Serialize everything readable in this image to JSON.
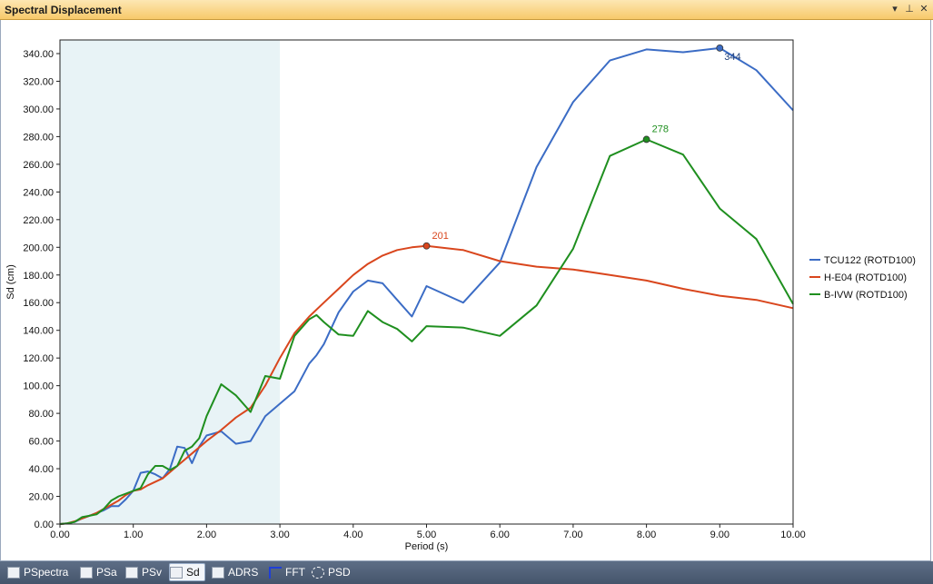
{
  "window": {
    "title": "Spectral Displacement",
    "controls": {
      "dropdown": "▾",
      "pin": "⊥",
      "close": "✕"
    }
  },
  "tabs": [
    {
      "label": "PSpectra",
      "icon": "pspectra-icon",
      "active": false
    },
    {
      "label": "PSa",
      "icon": "psa-icon",
      "active": false
    },
    {
      "label": "PSv",
      "icon": "psv-icon",
      "active": false
    },
    {
      "label": "Sd",
      "icon": "sd-icon",
      "active": true
    },
    {
      "label": "ADRS",
      "icon": "adrs-icon",
      "active": false
    },
    {
      "label": "FFT",
      "icon": "fft-icon",
      "active": false
    },
    {
      "label": "PSD",
      "icon": "psd-icon",
      "active": false
    }
  ],
  "chart_data": {
    "type": "line",
    "xlabel": "Period (s)",
    "ylabel": "Sd (cm)",
    "xlim": [
      0,
      10
    ],
    "ylim": [
      0,
      340
    ],
    "xticks": [
      "0.00",
      "1.00",
      "2.00",
      "3.00",
      "4.00",
      "5.00",
      "6.00",
      "7.00",
      "8.00",
      "9.00",
      "10.00"
    ],
    "yticks": [
      "0.00",
      "20.00",
      "40.00",
      "60.00",
      "80.00",
      "100.00",
      "120.00",
      "140.00",
      "160.00",
      "180.00",
      "200.00",
      "220.00",
      "240.00",
      "260.00",
      "280.00",
      "300.00",
      "320.00",
      "340.00"
    ],
    "shaded_region": {
      "x": [
        0,
        3
      ],
      "color": "#e8f3f6"
    },
    "grid": false,
    "legend_position": "right",
    "series": [
      {
        "name": "TCU122 (ROTD100)",
        "color": "#3b6cc5",
        "x": [
          0,
          0.1,
          0.2,
          0.3,
          0.4,
          0.5,
          0.6,
          0.7,
          0.8,
          0.9,
          1.0,
          1.1,
          1.2,
          1.3,
          1.4,
          1.5,
          1.6,
          1.7,
          1.8,
          1.9,
          2.0,
          2.2,
          2.4,
          2.6,
          2.8,
          3.0,
          3.2,
          3.4,
          3.5,
          3.6,
          3.8,
          4.0,
          4.2,
          4.4,
          4.6,
          4.8,
          5.0,
          5.5,
          6.0,
          6.5,
          7.0,
          7.5,
          8.0,
          8.5,
          9.0,
          9.5,
          10.0
        ],
        "y": [
          0,
          0.5,
          1.5,
          4,
          6,
          8,
          10,
          13,
          13,
          18,
          24,
          37,
          38,
          36,
          33,
          40,
          56,
          55,
          44,
          56,
          64,
          67,
          58,
          60,
          78,
          87,
          96,
          116,
          122,
          130,
          153,
          168,
          176,
          174,
          162,
          150,
          172,
          160,
          189,
          258,
          305,
          335,
          343,
          341,
          344,
          328,
          299
        ],
        "peak": {
          "x": 9.0,
          "y": 344,
          "label": "344"
        }
      },
      {
        "name": "H-E04 (ROTD100)",
        "color": "#d9461d",
        "x": [
          0,
          0.1,
          0.2,
          0.3,
          0.4,
          0.5,
          0.6,
          0.7,
          0.8,
          0.9,
          1.0,
          1.1,
          1.2,
          1.4,
          1.6,
          1.8,
          2.0,
          2.2,
          2.4,
          2.6,
          2.8,
          3.0,
          3.2,
          3.4,
          3.6,
          3.8,
          4.0,
          4.2,
          4.4,
          4.6,
          4.8,
          5.0,
          5.5,
          6.0,
          6.5,
          7.0,
          7.5,
          8.0,
          8.5,
          9.0,
          9.5,
          10.0
        ],
        "y": [
          0,
          0.5,
          2,
          4,
          6,
          8,
          11,
          14,
          17,
          21,
          24,
          25,
          28,
          33,
          42,
          51,
          60,
          68,
          77,
          84,
          100,
          120,
          138,
          150,
          160,
          170,
          180,
          188,
          194,
          198,
          200,
          201,
          198,
          190,
          186,
          184,
          180,
          176,
          170,
          165,
          162,
          156
        ],
        "peak": {
          "x": 5.0,
          "y": 201,
          "label": "201"
        }
      },
      {
        "name": "B-IVW (ROTD100)",
        "color": "#1f8f1f",
        "x": [
          0,
          0.1,
          0.2,
          0.3,
          0.4,
          0.5,
          0.6,
          0.7,
          0.8,
          0.9,
          1.0,
          1.1,
          1.2,
          1.3,
          1.4,
          1.5,
          1.6,
          1.7,
          1.8,
          1.9,
          2.0,
          2.2,
          2.4,
          2.6,
          2.8,
          3.0,
          3.2,
          3.4,
          3.5,
          3.6,
          3.8,
          4.0,
          4.2,
          4.4,
          4.6,
          4.8,
          5.0,
          5.5,
          6.0,
          6.5,
          7.0,
          7.5,
          8.0,
          8.5,
          9.0,
          9.5,
          10.0
        ],
        "y": [
          0,
          0.5,
          1.5,
          5,
          6,
          7,
          11,
          17,
          20,
          22,
          24,
          26,
          36,
          42,
          42,
          39,
          42,
          53,
          56,
          62,
          78,
          101,
          93,
          81,
          107,
          105,
          136,
          148,
          151,
          146,
          137,
          136,
          154,
          146,
          141,
          132,
          143,
          142,
          136,
          158,
          199,
          266,
          278,
          267,
          228,
          206,
          159
        ],
        "peak": {
          "x": 8.0,
          "y": 278,
          "label": "278"
        }
      }
    ]
  }
}
